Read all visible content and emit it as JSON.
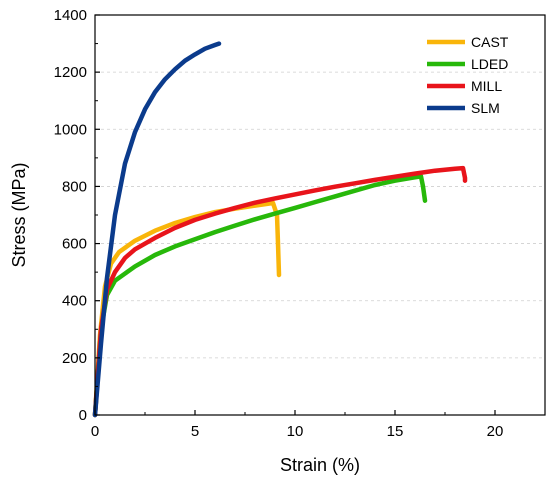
{
  "chart_data": {
    "type": "line",
    "title": "",
    "xlabel": "Strain (%)",
    "ylabel": "Stress (MPa)",
    "xlim": [
      0,
      22.5
    ],
    "ylim": [
      0,
      1400
    ],
    "xticks": [
      0,
      5,
      10,
      15,
      20
    ],
    "yticks": [
      0,
      200,
      400,
      600,
      800,
      1000,
      1200,
      1400
    ],
    "grid": "horizontal-dashed",
    "legend_position": "top-right",
    "series": [
      {
        "name": "CAST",
        "color": "#F9B50A",
        "points": [
          [
            0,
            0
          ],
          [
            0.25,
            280
          ],
          [
            0.5,
            450
          ],
          [
            0.8,
            530
          ],
          [
            1.2,
            570
          ],
          [
            2,
            610
          ],
          [
            3,
            645
          ],
          [
            4,
            672
          ],
          [
            5,
            693
          ],
          [
            6,
            710
          ],
          [
            7,
            722
          ],
          [
            8,
            733
          ],
          [
            8.9,
            742
          ],
          [
            9.1,
            700
          ],
          [
            9.15,
            600
          ],
          [
            9.2,
            490
          ]
        ]
      },
      {
        "name": "LDED",
        "color": "#27B80A",
        "points": [
          [
            0,
            0
          ],
          [
            0.3,
            300
          ],
          [
            0.6,
            420
          ],
          [
            1,
            470
          ],
          [
            1.5,
            495
          ],
          [
            2,
            520
          ],
          [
            3,
            560
          ],
          [
            4,
            590
          ],
          [
            5,
            615
          ],
          [
            6,
            640
          ],
          [
            7,
            663
          ],
          [
            8,
            685
          ],
          [
            9,
            705
          ],
          [
            10,
            725
          ],
          [
            11,
            745
          ],
          [
            12,
            765
          ],
          [
            13,
            785
          ],
          [
            14,
            805
          ],
          [
            15,
            820
          ],
          [
            16,
            832
          ],
          [
            16.3,
            835
          ],
          [
            16.4,
            800
          ],
          [
            16.5,
            750
          ]
        ]
      },
      {
        "name": "MILL",
        "color": "#E8141B",
        "points": [
          [
            0,
            0
          ],
          [
            0.3,
            300
          ],
          [
            0.6,
            440
          ],
          [
            1,
            500
          ],
          [
            1.5,
            550
          ],
          [
            2,
            580
          ],
          [
            3,
            620
          ],
          [
            4,
            655
          ],
          [
            5,
            683
          ],
          [
            6,
            705
          ],
          [
            7,
            725
          ],
          [
            8,
            743
          ],
          [
            9,
            758
          ],
          [
            10,
            772
          ],
          [
            11,
            786
          ],
          [
            12,
            799
          ],
          [
            13,
            811
          ],
          [
            14,
            823
          ],
          [
            15,
            834
          ],
          [
            16,
            845
          ],
          [
            17,
            855
          ],
          [
            18,
            862
          ],
          [
            18.4,
            864
          ],
          [
            18.5,
            830
          ],
          [
            18.5,
            820
          ]
        ]
      },
      {
        "name": "SLM",
        "color": "#0B3B8C",
        "points": [
          [
            0,
            0
          ],
          [
            0.3,
            250
          ],
          [
            0.6,
            480
          ],
          [
            1,
            700
          ],
          [
            1.5,
            880
          ],
          [
            2,
            990
          ],
          [
            2.5,
            1070
          ],
          [
            3,
            1130
          ],
          [
            3.5,
            1175
          ],
          [
            4,
            1210
          ],
          [
            4.5,
            1240
          ],
          [
            5,
            1262
          ],
          [
            5.5,
            1282
          ],
          [
            6,
            1295
          ],
          [
            6.2,
            1300
          ]
        ]
      }
    ]
  }
}
